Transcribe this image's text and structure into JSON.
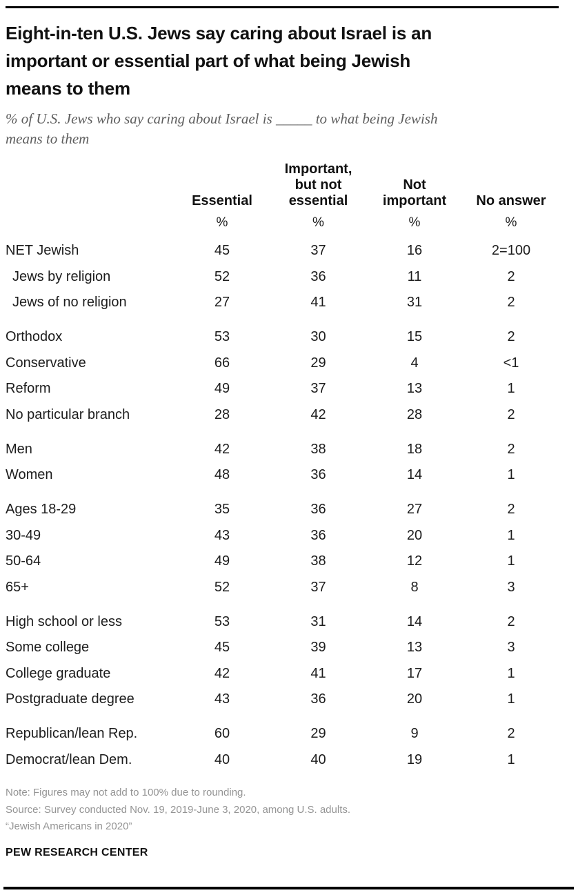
{
  "chart_data": {
    "type": "table",
    "title": "Eight-in-ten U.S. Jews say caring about Israel is an\nimportant or essential part of what being Jewish\nmeans to them",
    "subtitle": "% of U.S. Jews who say caring about Israel is _____ to what being Jewish\nmeans to them",
    "columns": [
      "Essential",
      "Important,\nbut not\nessential",
      "Not\nimportant",
      "No answer"
    ],
    "unit": "%",
    "groups": [
      {
        "rows": [
          {
            "label": "NET Jewish",
            "indent": false,
            "values": [
              "45",
              "37",
              "16",
              "2=100"
            ]
          },
          {
            "label": "Jews by religion",
            "indent": true,
            "values": [
              "52",
              "36",
              "11",
              "2"
            ]
          },
          {
            "label": "Jews of no religion",
            "indent": true,
            "values": [
              "27",
              "41",
              "31",
              "2"
            ]
          }
        ]
      },
      {
        "rows": [
          {
            "label": "Orthodox",
            "indent": false,
            "values": [
              "53",
              "30",
              "15",
              "2"
            ]
          },
          {
            "label": "Conservative",
            "indent": false,
            "values": [
              "66",
              "29",
              "4",
              "<1"
            ]
          },
          {
            "label": "Reform",
            "indent": false,
            "values": [
              "49",
              "37",
              "13",
              "1"
            ]
          },
          {
            "label": "No particular branch",
            "indent": false,
            "values": [
              "28",
              "42",
              "28",
              "2"
            ]
          }
        ]
      },
      {
        "rows": [
          {
            "label": "Men",
            "indent": false,
            "values": [
              "42",
              "38",
              "18",
              "2"
            ]
          },
          {
            "label": "Women",
            "indent": false,
            "values": [
              "48",
              "36",
              "14",
              "1"
            ]
          }
        ]
      },
      {
        "rows": [
          {
            "label": "Ages 18-29",
            "indent": false,
            "values": [
              "35",
              "36",
              "27",
              "2"
            ]
          },
          {
            "label": "30-49",
            "indent": false,
            "values": [
              "43",
              "36",
              "20",
              "1"
            ]
          },
          {
            "label": "50-64",
            "indent": false,
            "values": [
              "49",
              "38",
              "12",
              "1"
            ]
          },
          {
            "label": "65+",
            "indent": false,
            "values": [
              "52",
              "37",
              "8",
              "3"
            ]
          }
        ]
      },
      {
        "rows": [
          {
            "label": "High school or less",
            "indent": false,
            "values": [
              "53",
              "31",
              "14",
              "2"
            ]
          },
          {
            "label": "Some college",
            "indent": false,
            "values": [
              "45",
              "39",
              "13",
              "3"
            ]
          },
          {
            "label": "College graduate",
            "indent": false,
            "values": [
              "42",
              "41",
              "17",
              "1"
            ]
          },
          {
            "label": "Postgraduate degree",
            "indent": false,
            "values": [
              "43",
              "36",
              "20",
              "1"
            ]
          }
        ]
      },
      {
        "rows": [
          {
            "label": "Republican/lean Rep.",
            "indent": false,
            "values": [
              "60",
              "29",
              "9",
              "2"
            ]
          },
          {
            "label": "Democrat/lean Dem.",
            "indent": false,
            "values": [
              "40",
              "40",
              "19",
              "1"
            ]
          }
        ]
      }
    ]
  },
  "footer": {
    "note": "Note: Figures may not add to 100% due to rounding.",
    "source": "Source: Survey conducted Nov. 19, 2019-June 3, 2020, among U.S. adults.",
    "study": "“Jewish Americans in 2020”",
    "brand": "PEW RESEARCH CENTER"
  }
}
